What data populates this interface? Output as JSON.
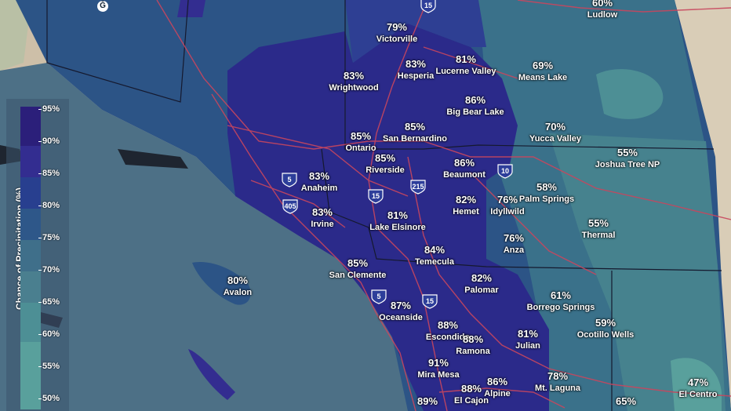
{
  "legend": {
    "title": "Chance of Precipitation (%)",
    "ticks": [
      "95%",
      "90%",
      "85%",
      "80%",
      "75%",
      "70%",
      "65%",
      "60%",
      "55%",
      "50%"
    ],
    "colors": [
      "#2b1f7a",
      "#332d90",
      "#283f8f",
      "#2e5789",
      "#3f6f8a",
      "#4a7f8f",
      "#4d8f95",
      "#59a09c"
    ]
  },
  "highways": [
    "15",
    "5",
    "405",
    "215",
    "10",
    "15",
    "5",
    "15"
  ],
  "locations": [
    {
      "pct": "60%",
      "name": "Ludlow"
    },
    {
      "pct": "79%",
      "name": "Victorville"
    },
    {
      "pct": "83%",
      "name": "Hesperia"
    },
    {
      "pct": "81%",
      "name": "Lucerne Valley"
    },
    {
      "pct": "69%",
      "name": "Means Lake"
    },
    {
      "pct": "83%",
      "name": "Wrightwood"
    },
    {
      "pct": "86%",
      "name": "Big Bear Lake"
    },
    {
      "pct": "85%",
      "name": "San Bernardino"
    },
    {
      "pct": "70%",
      "name": "Yucca Valley"
    },
    {
      "pct": "85%",
      "name": "Ontario"
    },
    {
      "pct": "85%",
      "name": "Riverside"
    },
    {
      "pct": "86%",
      "name": "Beaumont"
    },
    {
      "pct": "55%",
      "name": "Joshua Tree NP"
    },
    {
      "pct": "83%",
      "name": "Anaheim"
    },
    {
      "pct": "58%",
      "name": "Palm Springs"
    },
    {
      "pct": "82%",
      "name": "Hemet"
    },
    {
      "pct": "76%",
      "name": "Idyllwild"
    },
    {
      "pct": "83%",
      "name": "Irvine"
    },
    {
      "pct": "81%",
      "name": "Lake Elsinore"
    },
    {
      "pct": "55%",
      "name": "Thermal"
    },
    {
      "pct": "76%",
      "name": "Anza"
    },
    {
      "pct": "84%",
      "name": "Temecula"
    },
    {
      "pct": "85%",
      "name": "San Clemente"
    },
    {
      "pct": "80%",
      "name": "Avalon"
    },
    {
      "pct": "82%",
      "name": "Palomar"
    },
    {
      "pct": "61%",
      "name": "Borrego Springs"
    },
    {
      "pct": "87%",
      "name": "Oceanside"
    },
    {
      "pct": "88%",
      "name": "Escondido"
    },
    {
      "pct": "88%",
      "name": "Ramona"
    },
    {
      "pct": "81%",
      "name": "Julian"
    },
    {
      "pct": "59%",
      "name": "Ocotillo Wells"
    },
    {
      "pct": "91%",
      "name": "Mira Mesa"
    },
    {
      "pct": "78%",
      "name": "Mt. Laguna"
    },
    {
      "pct": "47%",
      "name": "El Centro"
    },
    {
      "pct": "86%",
      "name": "Alpine"
    },
    {
      "pct": "88%",
      "name": "El Cajon"
    },
    {
      "pct": "89%",
      "name": ""
    },
    {
      "pct": "65%",
      "name": ""
    }
  ]
}
